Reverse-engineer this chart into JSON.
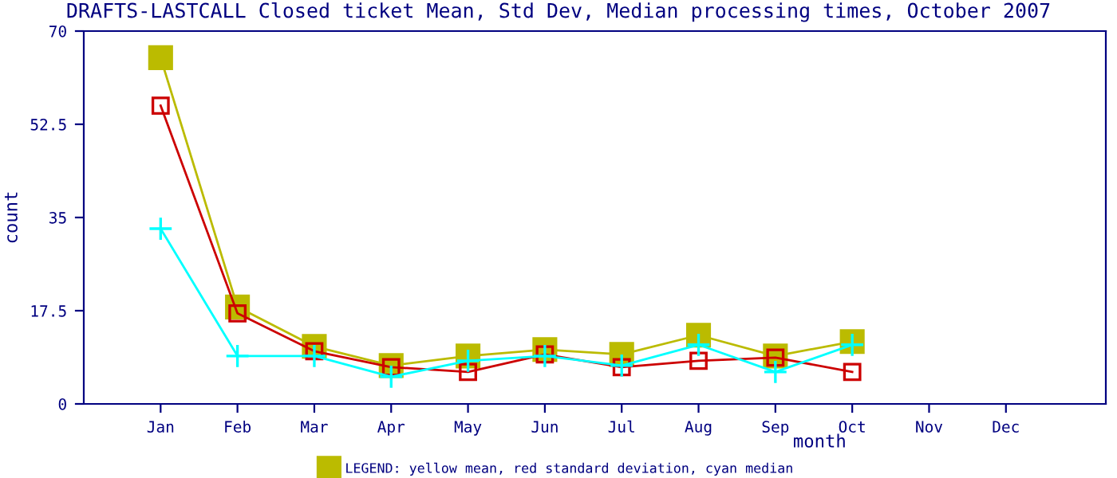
{
  "chart_data": {
    "type": "line",
    "title": "DRAFTS-LASTCALL Closed ticket Mean, Std Dev, Median processing times, October 2007",
    "xlabel": "month",
    "ylabel": "count",
    "categories": [
      "Jan",
      "Feb",
      "Mar",
      "Apr",
      "May",
      "Jun",
      "Jul",
      "Aug",
      "Sep",
      "Oct",
      "Nov",
      "Dec"
    ],
    "series": [
      {
        "name": "LEGEND: yellow mean, red standard deviation, cyan median",
        "color": "#bbbb00",
        "marker": "square",
        "values": [
          65,
          18.2,
          10.8,
          7.2,
          9,
          10.2,
          9.3,
          12.9,
          9,
          11.7,
          null,
          null
        ]
      },
      {
        "color": "#cc0000",
        "marker": "square",
        "values": [
          56,
          17,
          9.9,
          6.9,
          6,
          9.3,
          6.9,
          8.1,
          8.7,
          6,
          null,
          null
        ]
      },
      {
        "color": "#00ffff",
        "marker": "cross",
        "values": [
          32.9,
          9,
          9,
          5.1,
          8.1,
          9,
          7.2,
          11.1,
          6,
          11.1,
          null,
          null
        ]
      }
    ],
    "ylim": [
      0,
      70
    ],
    "yticks": [
      0,
      17.5,
      35,
      52.5,
      70
    ],
    "grid": false,
    "legend": "bottom"
  }
}
